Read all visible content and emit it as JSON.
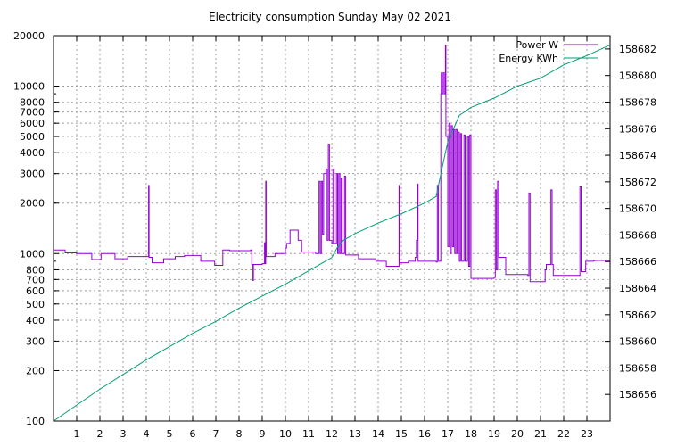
{
  "chart_data": {
    "type": "line",
    "title": "Electricity consumption Sunday May 02 2021",
    "grid": true,
    "legend_position": "top-right",
    "x": {
      "range": [
        0,
        24
      ],
      "ticks": [
        1,
        2,
        3,
        4,
        5,
        6,
        7,
        8,
        9,
        10,
        11,
        12,
        13,
        14,
        15,
        16,
        17,
        18,
        19,
        20,
        21,
        22,
        23
      ],
      "tick_labels": [
        "1",
        "2",
        "3",
        "4",
        "5",
        "6",
        "7",
        "8",
        "9",
        "10",
        "11",
        "12",
        "13",
        "14",
        "15",
        "16",
        "17",
        "18",
        "19",
        "20",
        "21",
        "22",
        "23"
      ]
    },
    "y_left": {
      "scale": "log",
      "range": [
        100,
        20000
      ],
      "ticks": [
        100,
        200,
        300,
        400,
        500,
        600,
        700,
        800,
        1000,
        2000,
        3000,
        4000,
        5000,
        6000,
        7000,
        8000,
        10000,
        20000
      ],
      "tick_labels": [
        "100",
        "200",
        "300",
        "400",
        "500",
        "600",
        "700",
        "800",
        "1000",
        "2000",
        "3000",
        "4000",
        "5000",
        "6000",
        "7000",
        "8000",
        "10000",
        "20000"
      ]
    },
    "y_right": {
      "scale": "linear",
      "range": [
        158654,
        158683
      ],
      "ticks": [
        158656,
        158658,
        158660,
        158662,
        158664,
        158666,
        158668,
        158670,
        158672,
        158674,
        158676,
        158678,
        158680,
        158682
      ],
      "tick_labels": [
        "158656",
        "158658",
        "158660",
        "158662",
        "158664",
        "158666",
        "158668",
        "158670",
        "158672",
        "158674",
        "158676",
        "158678",
        "158680",
        "158682"
      ]
    },
    "series": [
      {
        "name": "Power W",
        "color": "#9400d3",
        "axis": "left",
        "style": "steps",
        "points": [
          [
            0,
            1050
          ],
          [
            0.5,
            1010
          ],
          [
            1.0,
            1000
          ],
          [
            1.65,
            920
          ],
          [
            2.05,
            1000
          ],
          [
            2.65,
            930
          ],
          [
            3.2,
            960
          ],
          [
            3.8,
            960
          ],
          [
            4.1,
            2550
          ],
          [
            4.12,
            950
          ],
          [
            4.2,
            950
          ],
          [
            4.25,
            880
          ],
          [
            4.75,
            930
          ],
          [
            5.25,
            960
          ],
          [
            5.65,
            975
          ],
          [
            6.35,
            900
          ],
          [
            6.95,
            850
          ],
          [
            7.3,
            1050
          ],
          [
            7.6,
            1040
          ],
          [
            8.5,
            1050
          ],
          [
            8.55,
            860
          ],
          [
            8.6,
            690
          ],
          [
            8.62,
            860
          ],
          [
            9.0,
            870
          ],
          [
            9.1,
            1160
          ],
          [
            9.12,
            870
          ],
          [
            9.15,
            2700
          ],
          [
            9.17,
            960
          ],
          [
            9.55,
            1000
          ],
          [
            10.0,
            1080
          ],
          [
            10.05,
            1150
          ],
          [
            10.2,
            1380
          ],
          [
            10.55,
            1200
          ],
          [
            10.7,
            1020
          ],
          [
            11.3,
            1000
          ],
          [
            11.45,
            2700
          ],
          [
            11.5,
            1000
          ],
          [
            11.55,
            2700
          ],
          [
            11.6,
            1300
          ],
          [
            11.65,
            3000
          ],
          [
            11.75,
            3200
          ],
          [
            11.8,
            1200
          ],
          [
            11.85,
            4500
          ],
          [
            11.9,
            1200
          ],
          [
            12.0,
            1150
          ],
          [
            12.05,
            3200
          ],
          [
            12.1,
            1150
          ],
          [
            12.2,
            3000
          ],
          [
            12.25,
            1000
          ],
          [
            12.3,
            3000
          ],
          [
            12.35,
            1000
          ],
          [
            12.4,
            2800
          ],
          [
            12.45,
            1000
          ],
          [
            12.55,
            2900
          ],
          [
            12.6,
            980
          ],
          [
            13.15,
            930
          ],
          [
            13.25,
            930
          ],
          [
            13.9,
            900
          ],
          [
            14.2,
            900
          ],
          [
            14.35,
            840
          ],
          [
            14.75,
            840
          ],
          [
            14.9,
            2550
          ],
          [
            14.92,
            880
          ],
          [
            15.3,
            900
          ],
          [
            15.6,
            950
          ],
          [
            15.65,
            1200
          ],
          [
            15.7,
            2600
          ],
          [
            15.72,
            900
          ],
          [
            16.5,
            890
          ],
          [
            16.55,
            2550
          ],
          [
            16.6,
            900
          ],
          [
            16.7,
            9000
          ],
          [
            16.72,
            12000
          ],
          [
            16.75,
            9000
          ],
          [
            16.8,
            12000
          ],
          [
            16.85,
            9000
          ],
          [
            16.9,
            17500
          ],
          [
            16.92,
            5000
          ],
          [
            17.0,
            1100
          ],
          [
            17.05,
            6000
          ],
          [
            17.1,
            1000
          ],
          [
            17.15,
            5800
          ],
          [
            17.2,
            1100
          ],
          [
            17.25,
            5500
          ],
          [
            17.3,
            1000
          ],
          [
            17.35,
            5500
          ],
          [
            17.4,
            1000
          ],
          [
            17.45,
            5300
          ],
          [
            17.5,
            900
          ],
          [
            17.55,
            5200
          ],
          [
            17.6,
            900
          ],
          [
            17.7,
            5100
          ],
          [
            17.75,
            900
          ],
          [
            17.85,
            5000
          ],
          [
            17.9,
            840
          ],
          [
            17.95,
            5100
          ],
          [
            18.0,
            710
          ],
          [
            18.15,
            710
          ],
          [
            18.5,
            710
          ],
          [
            19.0,
            720
          ],
          [
            19.05,
            2400
          ],
          [
            19.1,
            800
          ],
          [
            19.15,
            2700
          ],
          [
            19.2,
            950
          ],
          [
            19.5,
            750
          ],
          [
            20.45,
            740
          ],
          [
            20.5,
            2300
          ],
          [
            20.55,
            680
          ],
          [
            21.2,
            800
          ],
          [
            21.25,
            860
          ],
          [
            21.45,
            2400
          ],
          [
            21.5,
            860
          ],
          [
            21.55,
            740
          ],
          [
            22.35,
            740
          ],
          [
            22.45,
            740
          ],
          [
            22.7,
            2500
          ],
          [
            22.75,
            780
          ],
          [
            22.95,
            900
          ],
          [
            23.3,
            910
          ],
          [
            24,
            910
          ]
        ]
      },
      {
        "name": "Energy KWh",
        "color": "#009e73",
        "axis": "right",
        "style": "line",
        "points": [
          [
            0,
            158654.0
          ],
          [
            1,
            158655.2
          ],
          [
            2,
            158656.4
          ],
          [
            3,
            158657.5
          ],
          [
            4,
            158658.6
          ],
          [
            5,
            158659.6
          ],
          [
            6,
            158660.6
          ],
          [
            7,
            158661.5
          ],
          [
            8,
            158662.5
          ],
          [
            9,
            158663.4
          ],
          [
            10,
            158664.3
          ],
          [
            11,
            158665.3
          ],
          [
            11.5,
            158665.8
          ],
          [
            12,
            158666.3
          ],
          [
            12.25,
            158667.1
          ],
          [
            12.5,
            158667.6
          ],
          [
            13,
            158668.1
          ],
          [
            14,
            158668.9
          ],
          [
            15,
            158669.6
          ],
          [
            16,
            158670.4
          ],
          [
            16.5,
            158670.9
          ],
          [
            16.75,
            158673.0
          ],
          [
            17,
            158675.0
          ],
          [
            17.5,
            158677.0
          ],
          [
            18,
            158677.6
          ],
          [
            19,
            158678.3
          ],
          [
            20,
            158679.2
          ],
          [
            21,
            158679.8
          ],
          [
            22,
            158680.8
          ],
          [
            23,
            158681.5
          ],
          [
            24,
            158682.3
          ]
        ]
      }
    ]
  }
}
